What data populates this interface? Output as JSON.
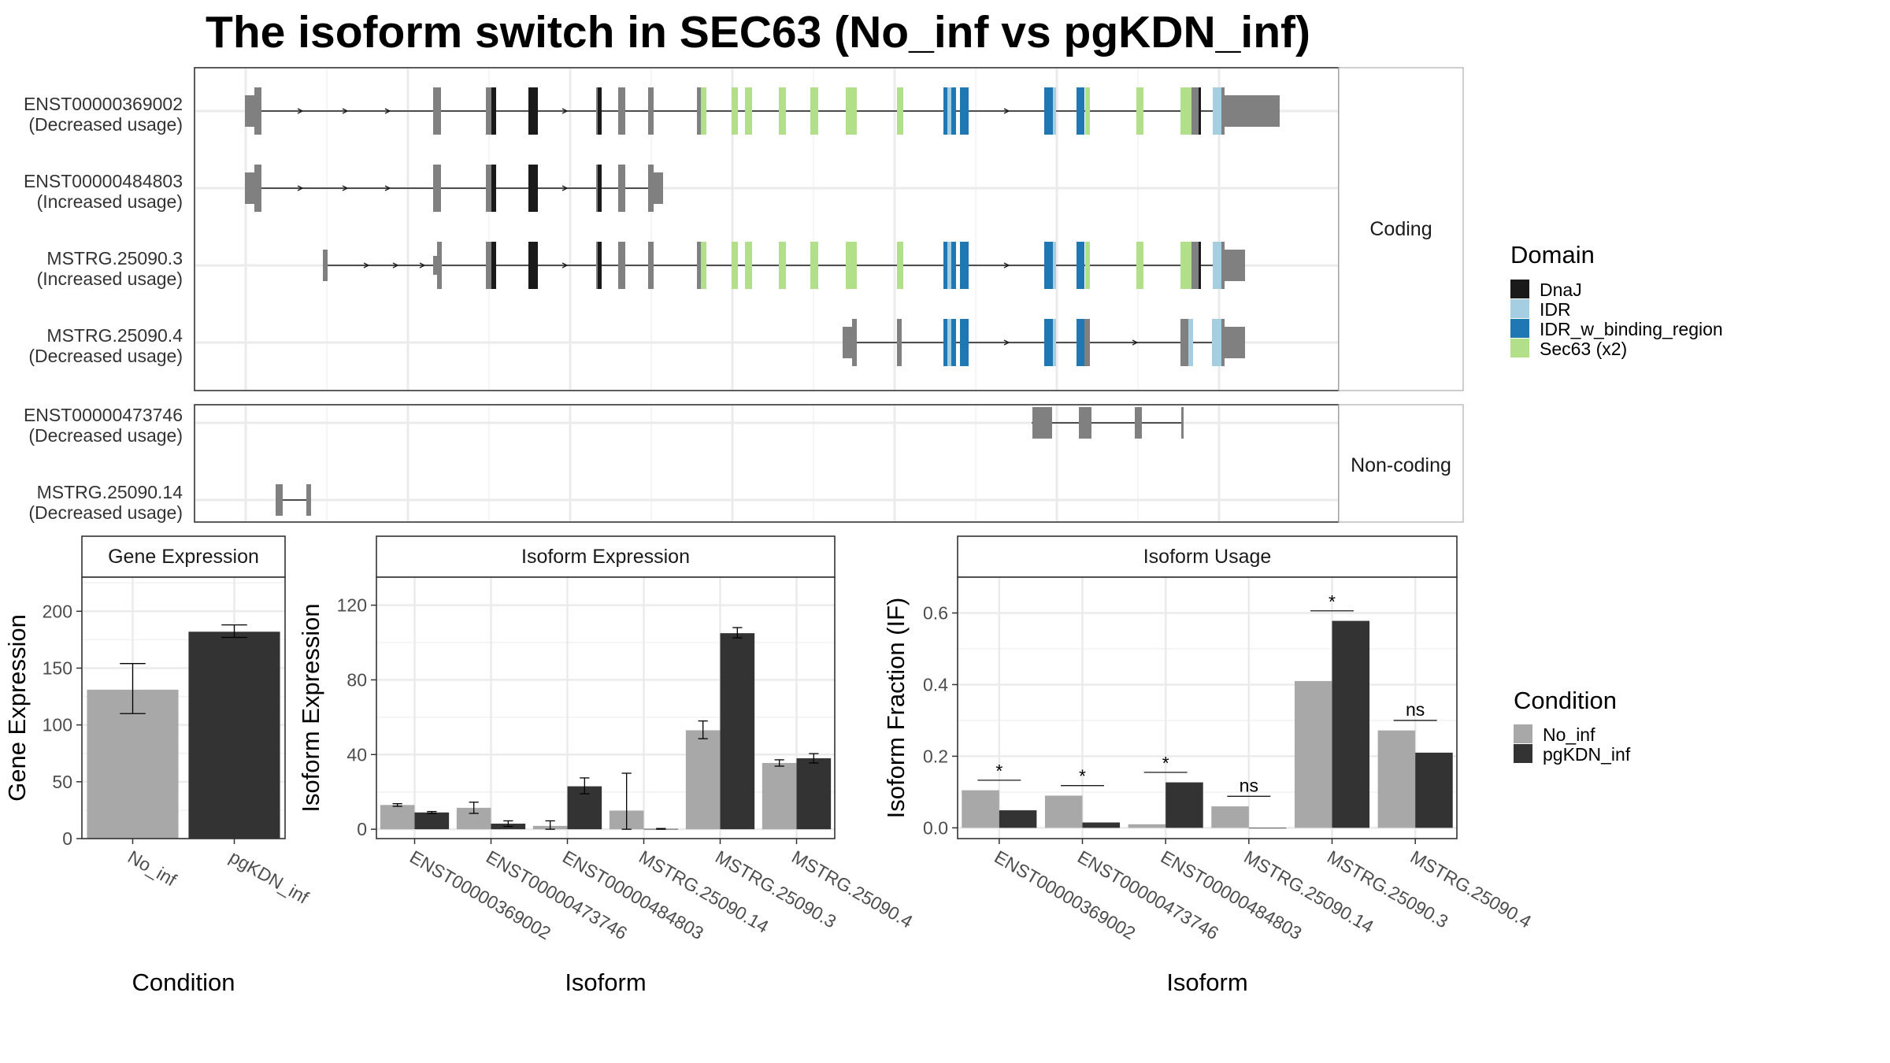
{
  "title": "The isoform switch in SEC63 (No_inf vs pgKDN_inf)",
  "colors": {
    "exon": "#808080",
    "No_inf": "#A8A8A8",
    "pgKDN_inf": "#333333",
    "DnaJ": "#1A1A1A",
    "IDR": "#A6CEE3",
    "IDR_w_binding_region": "#1F78B4",
    "Sec63": "#B2DF8A"
  },
  "structure": {
    "facets": [
      "Coding",
      "Non-coding"
    ],
    "coding": [
      {
        "name": "ENST00000369002",
        "usage": "(Decreased usage)"
      },
      {
        "name": "ENST00000484803",
        "usage": "(Increased usage)"
      },
      {
        "name": "MSTRG.25090.3",
        "usage": "(Increased usage)"
      },
      {
        "name": "MSTRG.25090.4",
        "usage": "(Decreased usage)"
      }
    ],
    "noncoding": [
      {
        "name": "ENST00000473746",
        "usage": "(Decreased usage)"
      },
      {
        "name": "MSTRG.25090.14",
        "usage": "(Decreased usage)"
      }
    ]
  },
  "legend": {
    "domain_title": "Domain",
    "domains": [
      {
        "label": "DnaJ",
        "key": "DnaJ"
      },
      {
        "label": "IDR",
        "key": "IDR"
      },
      {
        "label": "IDR_w_binding_region",
        "key": "IDR_w_binding_region"
      },
      {
        "label": "Sec63 (x2)",
        "key": "Sec63"
      }
    ],
    "condition_title": "Condition",
    "conditions": [
      "No_inf",
      "pgKDN_inf"
    ]
  },
  "chart_data": [
    {
      "type": "bar",
      "title": "Gene Expression",
      "xlabel": "Condition",
      "ylabel": "Gene Expression",
      "categories": [
        "No_inf",
        "pgKDN_inf"
      ],
      "values": [
        131,
        182
      ],
      "error_low": [
        110,
        177
      ],
      "error_high": [
        154,
        188
      ],
      "ylim": [
        0,
        230
      ],
      "yticks": [
        0,
        50,
        100,
        150,
        200
      ]
    },
    {
      "type": "bar",
      "title": "Isoform Expression",
      "xlabel": "Isoform",
      "ylabel": "Isoform Expression",
      "categories": [
        "ENST00000369002",
        "ENST00000473746",
        "ENST00000484803",
        "MSTRG.25090.14",
        "MSTRG.25090.3",
        "MSTRG.25090.4"
      ],
      "series": [
        {
          "name": "No_inf",
          "values": [
            13,
            11.5,
            1.8,
            10,
            53,
            35.5
          ],
          "error_low": [
            12.3,
            8.5,
            0,
            0,
            48.5,
            33.8
          ],
          "error_high": [
            13.7,
            14.5,
            4.5,
            30,
            58,
            37.2
          ]
        },
        {
          "name": "pgKDN_inf",
          "values": [
            9,
            3,
            23,
            0.2,
            105,
            38
          ],
          "error_low": [
            8.5,
            1.5,
            19,
            0,
            102.5,
            35.5
          ],
          "error_high": [
            9.5,
            4.5,
            27.5,
            0.4,
            108,
            40.5
          ]
        }
      ],
      "ylim": [
        -5,
        135
      ],
      "yticks": [
        0,
        40,
        80,
        120
      ]
    },
    {
      "type": "bar",
      "title": "Isoform Usage",
      "xlabel": "Isoform",
      "ylabel": "Isoform Fraction (IF)",
      "categories": [
        "ENST00000369002",
        "ENST00000473746",
        "ENST00000484803",
        "MSTRG.25090.14",
        "MSTRG.25090.3",
        "MSTRG.25090.4"
      ],
      "series": [
        {
          "name": "No_inf",
          "values": [
            0.105,
            0.09,
            0.01,
            0.06,
            0.41,
            0.272
          ]
        },
        {
          "name": "pgKDN_inf",
          "values": [
            0.049,
            0.015,
            0.127,
            0.0,
            0.578,
            0.21
          ]
        }
      ],
      "significance": [
        "*",
        "*",
        "*",
        "ns",
        "*",
        "ns"
      ],
      "ylim": [
        -0.03,
        0.7
      ],
      "yticks": [
        0.0,
        0.2,
        0.4,
        0.6
      ],
      "ytick_labels": [
        "0.0",
        "0.2",
        "0.4",
        "0.6"
      ]
    }
  ]
}
